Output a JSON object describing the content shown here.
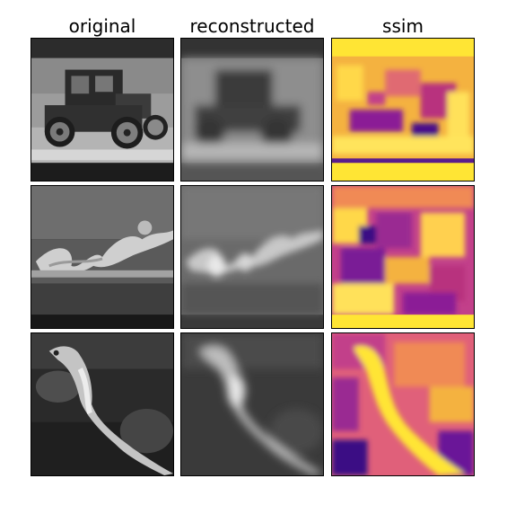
{
  "figure": {
    "column_titles": [
      "original",
      "reconstructed",
      "ssim"
    ],
    "rows": [
      {
        "subject": "vintage-car"
      },
      {
        "subject": "swimming-snake"
      },
      {
        "subject": "seahorse"
      }
    ],
    "colors": {
      "background": "#ffffff",
      "grayscale_dark": "#1a1a1a",
      "grayscale_light": "#d8d8d8",
      "ssim_low": "#2a0a7a",
      "ssim_mid": "#d04a8c",
      "ssim_high": "#ffe534"
    }
  }
}
